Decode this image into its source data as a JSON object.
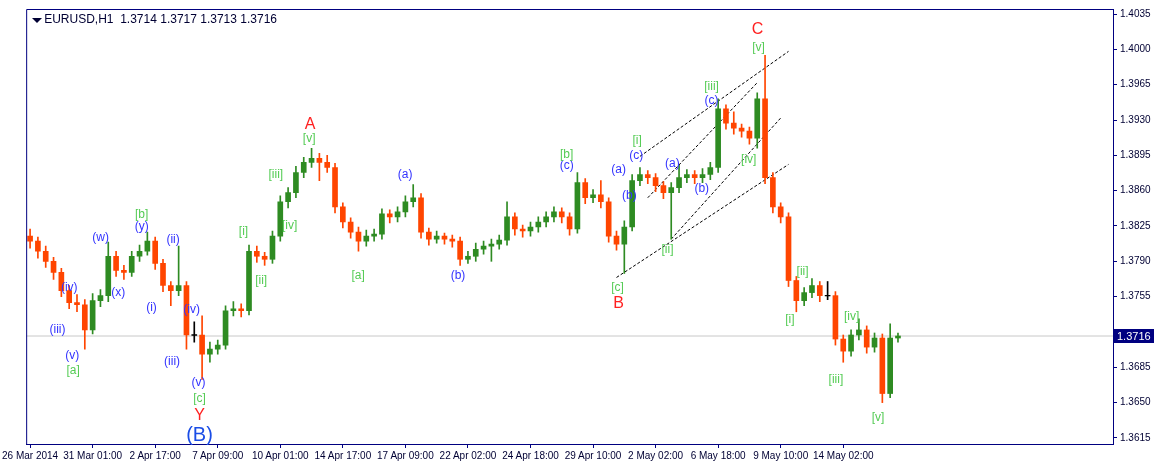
{
  "chart_data": {
    "type": "candlestick",
    "title": "EURUSD,H1  1.3714 1.3717 1.3713 1.3716",
    "categories": [
      "26 Mar 2014",
      null,
      null,
      null,
      null,
      null,
      null,
      null,
      "31 Mar 01:00",
      null,
      null,
      null,
      null,
      null,
      null,
      null,
      "2 Apr 17:00",
      null,
      null,
      null,
      null,
      null,
      null,
      null,
      "7 Apr 09:00",
      null,
      null,
      null,
      null,
      null,
      null,
      null,
      "10 Apr 01:00",
      null,
      null,
      null,
      null,
      null,
      null,
      null,
      "14 Apr 17:00",
      null,
      null,
      null,
      null,
      null,
      null,
      null,
      "17 Apr 09:00",
      null,
      null,
      null,
      null,
      null,
      null,
      null,
      "22 Apr 02:00",
      null,
      null,
      null,
      null,
      null,
      null,
      null,
      "24 Apr 18:00",
      null,
      null,
      null,
      null,
      null,
      null,
      null,
      "29 Apr 10:00",
      null,
      null,
      null,
      null,
      null,
      null,
      null,
      "2 May 02:00",
      null,
      null,
      null,
      null,
      null,
      null,
      null,
      "6 May 18:00",
      null,
      null,
      null,
      null,
      null,
      null,
      null,
      "9 May 10:00",
      null,
      null,
      null,
      null,
      null,
      null,
      null,
      "14 May 02:00",
      null,
      null,
      null,
      null,
      null,
      null,
      null,
      null,
      null,
      null,
      null,
      null,
      null,
      null,
      null,
      null,
      null,
      null,
      null,
      null,
      null,
      null,
      null,
      null,
      null,
      null,
      null,
      null,
      null,
      null,
      null,
      null,
      null,
      null
    ],
    "ohlc": [
      [
        1.3815,
        1.3822,
        1.3803,
        1.381
      ],
      [
        1.381,
        1.3814,
        1.3793,
        1.38
      ],
      [
        1.38,
        1.3805,
        1.3784,
        1.379
      ],
      [
        1.379,
        1.3794,
        1.3772,
        1.3779
      ],
      [
        1.3779,
        1.3783,
        1.3755,
        1.3761
      ],
      [
        1.3761,
        1.3766,
        1.3743,
        1.3749
      ],
      [
        1.3749,
        1.3757,
        1.374,
        1.3747
      ],
      [
        1.3747,
        1.3752,
        1.3703,
        1.3722
      ],
      [
        1.3722,
        1.3758,
        1.3718,
        1.3751
      ],
      [
        1.3751,
        1.3762,
        1.3745,
        1.3756
      ],
      [
        1.3756,
        1.3809,
        1.375,
        1.3795
      ],
      [
        1.3795,
        1.38,
        1.3775,
        1.3781
      ],
      [
        1.3781,
        1.3786,
        1.3772,
        1.3779
      ],
      [
        1.3779,
        1.38,
        1.3775,
        1.3795
      ],
      [
        1.3795,
        1.3806,
        1.379,
        1.38
      ],
      [
        1.38,
        1.3819,
        1.3796,
        1.381
      ],
      [
        1.381,
        1.3814,
        1.3782,
        1.3788
      ],
      [
        1.3788,
        1.3792,
        1.376,
        1.3766
      ],
      [
        1.3766,
        1.377,
        1.3746,
        1.3761
      ],
      [
        1.3761,
        1.3805,
        1.3756,
        1.3766
      ],
      [
        1.3766,
        1.377,
        1.3703,
        1.3717
      ],
      [
        1.3717,
        1.373,
        1.371,
        1.3717
      ],
      [
        1.3717,
        1.3736,
        1.3673,
        1.3698
      ],
      [
        1.3698,
        1.371,
        1.369,
        1.3703
      ],
      [
        1.3703,
        1.3712,
        1.3698,
        1.3707
      ],
      [
        1.3707,
        1.3746,
        1.3703,
        1.3741
      ],
      [
        1.3741,
        1.375,
        1.3736,
        1.3743
      ],
      [
        1.3743,
        1.3748,
        1.3735,
        1.3741
      ],
      [
        1.3741,
        1.3806,
        1.3737,
        1.38
      ],
      [
        1.38,
        1.3805,
        1.3789,
        1.3795
      ],
      [
        1.3795,
        1.3799,
        1.3786,
        1.3792
      ],
      [
        1.3792,
        1.382,
        1.3788,
        1.3815
      ],
      [
        1.3815,
        1.3855,
        1.381,
        1.3849
      ],
      [
        1.3849,
        1.3863,
        1.3843,
        1.3858
      ],
      [
        1.3858,
        1.3884,
        1.3853,
        1.3878
      ],
      [
        1.3878,
        1.3893,
        1.3873,
        1.3888
      ],
      [
        1.3888,
        1.3902,
        1.3883,
        1.3892
      ],
      [
        1.3892,
        1.3897,
        1.387,
        1.3888
      ],
      [
        1.3888,
        1.3895,
        1.3878,
        1.3883
      ],
      [
        1.3883,
        1.3887,
        1.3838,
        1.3844
      ],
      [
        1.3844,
        1.3848,
        1.3823,
        1.3829
      ],
      [
        1.3829,
        1.3833,
        1.3813,
        1.3819
      ],
      [
        1.3819,
        1.3824,
        1.38,
        1.381
      ],
      [
        1.381,
        1.3821,
        1.3805,
        1.3815
      ],
      [
        1.3815,
        1.3822,
        1.381,
        1.3817
      ],
      [
        1.3817,
        1.3842,
        1.3812,
        1.3837
      ],
      [
        1.3837,
        1.3841,
        1.3828,
        1.3834
      ],
      [
        1.3834,
        1.3844,
        1.3829,
        1.3839
      ],
      [
        1.3839,
        1.3855,
        1.3834,
        1.3849
      ],
      [
        1.3849,
        1.3866,
        1.3844,
        1.3853
      ],
      [
        1.3853,
        1.3857,
        1.3813,
        1.3819
      ],
      [
        1.3819,
        1.3823,
        1.3806,
        1.3812
      ],
      [
        1.3812,
        1.382,
        1.3808,
        1.3815
      ],
      [
        1.3815,
        1.3818,
        1.3807,
        1.3812
      ],
      [
        1.3812,
        1.3816,
        1.3804,
        1.381
      ],
      [
        1.381,
        1.3814,
        1.3786,
        1.3792
      ],
      [
        1.3792,
        1.38,
        1.3788,
        1.3795
      ],
      [
        1.3795,
        1.3808,
        1.379,
        1.3802
      ],
      [
        1.3802,
        1.381,
        1.3797,
        1.3805
      ],
      [
        1.3805,
        1.3812,
        1.379,
        1.3807
      ],
      [
        1.3807,
        1.3816,
        1.3802,
        1.3811
      ],
      [
        1.3811,
        1.3849,
        1.3806,
        1.3834
      ],
      [
        1.3834,
        1.3838,
        1.3816,
        1.3822
      ],
      [
        1.3822,
        1.3826,
        1.3814,
        1.382
      ],
      [
        1.382,
        1.3829,
        1.3815,
        1.3824
      ],
      [
        1.3824,
        1.3834,
        1.3819,
        1.3829
      ],
      [
        1.3829,
        1.3839,
        1.3824,
        1.3834
      ],
      [
        1.3834,
        1.3844,
        1.3829,
        1.3839
      ],
      [
        1.3839,
        1.3843,
        1.3828,
        1.3834
      ],
      [
        1.3834,
        1.3838,
        1.3816,
        1.3822
      ],
      [
        1.3822,
        1.3878,
        1.3818,
        1.3868
      ],
      [
        1.3868,
        1.3872,
        1.3847,
        1.3853
      ],
      [
        1.3853,
        1.3861,
        1.3848,
        1.3856
      ],
      [
        1.3856,
        1.387,
        1.3843,
        1.3849
      ],
      [
        1.3849,
        1.3853,
        1.3809,
        1.3815
      ],
      [
        1.3815,
        1.382,
        1.3801,
        1.3807
      ],
      [
        1.3807,
        1.383,
        1.3778,
        1.3824
      ],
      [
        1.3824,
        1.3876,
        1.382,
        1.387
      ],
      [
        1.387,
        1.3883,
        1.3865,
        1.3876
      ],
      [
        1.3876,
        1.388,
        1.3867,
        1.3873
      ],
      [
        1.3873,
        1.3877,
        1.3859,
        1.3865
      ],
      [
        1.3865,
        1.3869,
        1.3852,
        1.3858
      ],
      [
        1.3858,
        1.3868,
        1.3812,
        1.3863
      ],
      [
        1.3863,
        1.3885,
        1.3858,
        1.3873
      ],
      [
        1.3873,
        1.3881,
        1.3868,
        1.3876
      ],
      [
        1.3876,
        1.388,
        1.3867,
        1.3873
      ],
      [
        1.3873,
        1.3882,
        1.3868,
        1.3876
      ],
      [
        1.3876,
        1.3888,
        1.3871,
        1.3883
      ],
      [
        1.3883,
        1.3951,
        1.3878,
        1.3941
      ],
      [
        1.3941,
        1.3945,
        1.3921,
        1.3927
      ],
      [
        1.3927,
        1.3938,
        1.3916,
        1.3922
      ],
      [
        1.3922,
        1.3926,
        1.3913,
        1.3919
      ],
      [
        1.3919,
        1.3923,
        1.3906,
        1.3912
      ],
      [
        1.3912,
        1.3957,
        1.3902,
        1.3951
      ],
      [
        1.3951,
        1.3994,
        1.3867,
        1.3873
      ],
      [
        1.3873,
        1.3878,
        1.3838,
        1.3844
      ],
      [
        1.3844,
        1.3848,
        1.3828,
        1.3834
      ],
      [
        1.3834,
        1.3838,
        1.3765,
        1.3771
      ],
      [
        1.3771,
        1.3775,
        1.374,
        1.3751
      ],
      [
        1.3751,
        1.3764,
        1.3746,
        1.3759
      ],
      [
        1.3759,
        1.3773,
        1.3754,
        1.3766
      ],
      [
        1.3766,
        1.377,
        1.375,
        1.3756
      ],
      [
        1.3756,
        1.377,
        1.3752,
        1.3756
      ],
      [
        1.3756,
        1.376,
        1.3707,
        1.3713
      ],
      [
        1.3713,
        1.3717,
        1.369,
        1.3701
      ],
      [
        1.3701,
        1.3722,
        1.3696,
        1.3717
      ],
      [
        1.3717,
        1.3733,
        1.3712,
        1.3722
      ],
      [
        1.3722,
        1.3726,
        1.3699,
        1.3705
      ],
      [
        1.3705,
        1.3719,
        1.37,
        1.3714
      ],
      [
        1.3714,
        1.3718,
        1.365,
        1.3659
      ],
      [
        1.3659,
        1.3728,
        1.3655,
        1.3714
      ],
      [
        1.3714,
        1.3719,
        1.371,
        1.3716
      ],
      null,
      null,
      null,
      null,
      null,
      null,
      null,
      null,
      null,
      null,
      null,
      null,
      null,
      null,
      null,
      null,
      null,
      null,
      null,
      null,
      null,
      null,
      null,
      null,
      null,
      null,
      null
    ],
    "colors": [
      "#ff4500",
      "#ff4500",
      "#ff4500",
      "#ff4500",
      "#ff4500",
      "#ff4500",
      "#ff4500",
      "#ff4500",
      "#2e8b22",
      "#2e8b22",
      "#2e8b22",
      "#ff4500",
      "#ff4500",
      "#2e8b22",
      "#2e8b22",
      "#2e8b22",
      "#ff4500",
      "#ff4500",
      "#ff4500",
      "#2e8b22",
      "#ff4500",
      "#000000",
      "#ff4500",
      "#2e8b22",
      "#2e8b22",
      "#2e8b22",
      "#2e8b22",
      "#ff4500",
      "#2e8b22",
      "#ff4500",
      "#ff4500",
      "#2e8b22",
      "#2e8b22",
      "#2e8b22",
      "#2e8b22",
      "#2e8b22",
      "#2e8b22",
      "#ff4500",
      "#ff4500",
      "#ff4500",
      "#ff4500",
      "#ff4500",
      "#ff4500",
      "#2e8b22",
      "#2e8b22",
      "#2e8b22",
      "#ff4500",
      "#2e8b22",
      "#2e8b22",
      "#2e8b22",
      "#ff4500",
      "#ff4500",
      "#2e8b22",
      "#ff4500",
      "#ff4500",
      "#ff4500",
      "#2e8b22",
      "#2e8b22",
      "#2e8b22",
      "#2e8b22",
      "#2e8b22",
      "#2e8b22",
      "#ff4500",
      "#ff4500",
      "#2e8b22",
      "#2e8b22",
      "#2e8b22",
      "#2e8b22",
      "#ff4500",
      "#ff4500",
      "#2e8b22",
      "#ff4500",
      "#2e8b22",
      "#ff4500",
      "#ff4500",
      "#ff4500",
      "#2e8b22",
      "#2e8b22",
      "#2e8b22",
      "#ff4500",
      "#ff4500",
      "#ff4500",
      "#2e8b22",
      "#2e8b22",
      "#2e8b22",
      "#ff4500",
      "#2e8b22",
      "#2e8b22",
      "#2e8b22",
      "#ff4500",
      "#ff4500",
      "#ff4500",
      "#ff4500",
      "#2e8b22",
      "#ff4500",
      "#ff4500",
      "#ff4500",
      "#ff4500",
      "#ff4500",
      "#2e8b22",
      "#2e8b22",
      "#ff4500",
      "#000000",
      "#ff4500",
      "#ff4500",
      "#2e8b22",
      "#2e8b22",
      "#ff4500",
      "#2e8b22",
      "#ff4500",
      "#2e8b22",
      "#2e8b22",
      null,
      null,
      null,
      null,
      null,
      null,
      null,
      null,
      null,
      null,
      null,
      null,
      null,
      null,
      null,
      null,
      null,
      null,
      null,
      null,
      null,
      null,
      null,
      null,
      null,
      null,
      null
    ],
    "series": [
      {
        "type": "line",
        "color": "#000000",
        "line_style": "dashed",
        "values": [
          null,
          null,
          null,
          null,
          null,
          null,
          null,
          null,
          null,
          null,
          null,
          null,
          null,
          null,
          null,
          null,
          null,
          null,
          null,
          null,
          null,
          null,
          null,
          null,
          null,
          null,
          null,
          null,
          null,
          null,
          null,
          null,
          null,
          null,
          null,
          null,
          null,
          null,
          null,
          null,
          null,
          null,
          null,
          null,
          null,
          null,
          null,
          null,
          null,
          null,
          null,
          null,
          null,
          null,
          null,
          null,
          null,
          null,
          null,
          null,
          null,
          null,
          null,
          null,
          null,
          null,
          null,
          null,
          null,
          null,
          null,
          null,
          null,
          null,
          null,
          1.3774,
          null,
          null,
          null,
          null,
          null,
          null,
          null,
          null,
          null,
          null,
          null,
          null,
          null,
          null,
          null,
          null,
          null,
          null,
          null,
          null,
          null,
          1.3886,
          null,
          null,
          null,
          null,
          null,
          null,
          null,
          null,
          null,
          null,
          null,
          null,
          null,
          null,
          null,
          null,
          null,
          null,
          null,
          null,
          null,
          null,
          null,
          null,
          null,
          null,
          null,
          null,
          null,
          null,
          null,
          null,
          null,
          null,
          null,
          null,
          null,
          null,
          null,
          null,
          null
        ]
      },
      {
        "type": "line",
        "color": "#000000",
        "line_style": "dashed",
        "values": [
          null,
          null,
          null,
          null,
          null,
          null,
          null,
          null,
          null,
          null,
          null,
          null,
          null,
          null,
          null,
          null,
          null,
          null,
          null,
          null,
          null,
          null,
          null,
          null,
          null,
          null,
          null,
          null,
          null,
          null,
          null,
          null,
          null,
          null,
          null,
          null,
          null,
          null,
          null,
          null,
          null,
          null,
          null,
          null,
          null,
          null,
          null,
          null,
          null,
          null,
          null,
          null,
          null,
          null,
          null,
          null,
          null,
          null,
          null,
          null,
          null,
          null,
          null,
          null,
          null,
          null,
          null,
          null,
          null,
          null,
          null,
          null,
          null,
          null,
          null,
          null,
          null,
          null,
          1.3894,
          null,
          null,
          null,
          null,
          null,
          null,
          null,
          null,
          null,
          null,
          null,
          null,
          null,
          null,
          null,
          null,
          null,
          null,
          1.3998,
          null,
          null,
          null,
          null,
          null,
          null,
          null,
          null,
          null,
          null,
          null,
          null,
          null,
          null,
          null,
          null,
          null,
          null,
          null,
          null,
          null,
          null,
          null,
          null,
          null,
          null,
          null,
          null,
          null,
          null,
          null,
          null,
          null,
          null,
          null,
          null,
          null,
          null,
          null,
          null,
          null
        ]
      },
      {
        "type": "line",
        "color": "#000000",
        "line_style": "dashed",
        "values": [
          null,
          null,
          null,
          null,
          null,
          null,
          null,
          null,
          null,
          null,
          null,
          null,
          null,
          null,
          null,
          null,
          null,
          null,
          null,
          null,
          null,
          null,
          null,
          null,
          null,
          null,
          null,
          null,
          null,
          null,
          null,
          null,
          null,
          null,
          null,
          null,
          null,
          null,
          null,
          null,
          null,
          null,
          null,
          null,
          null,
          null,
          null,
          null,
          null,
          null,
          null,
          null,
          null,
          null,
          null,
          null,
          null,
          null,
          null,
          null,
          null,
          null,
          null,
          null,
          null,
          null,
          null,
          null,
          null,
          null,
          null,
          null,
          null,
          null,
          null,
          null,
          null,
          null,
          null,
          1.3853,
          null,
          null,
          null,
          null,
          null,
          null,
          null,
          null,
          null,
          null,
          null,
          null,
          null,
          1.3967,
          null,
          null,
          null,
          null,
          null,
          null,
          null,
          null,
          null,
          null,
          null,
          null,
          null,
          null,
          null,
          null,
          null,
          null,
          null,
          null,
          null,
          null,
          null,
          null,
          null,
          null,
          null,
          null,
          null,
          null,
          null,
          null,
          null,
          null,
          null,
          null,
          null,
          null,
          null,
          null,
          null,
          null,
          null,
          null,
          null
        ]
      },
      {
        "type": "line",
        "color": "#000000",
        "line_style": "dashed",
        "values": [
          null,
          null,
          null,
          null,
          null,
          null,
          null,
          null,
          null,
          null,
          null,
          null,
          null,
          null,
          null,
          null,
          null,
          null,
          null,
          null,
          null,
          null,
          null,
          null,
          null,
          null,
          null,
          null,
          null,
          null,
          null,
          null,
          null,
          null,
          null,
          null,
          null,
          null,
          null,
          null,
          null,
          null,
          null,
          null,
          null,
          null,
          null,
          null,
          null,
          null,
          null,
          null,
          null,
          null,
          null,
          null,
          null,
          null,
          null,
          null,
          null,
          null,
          null,
          null,
          null,
          null,
          null,
          null,
          null,
          null,
          null,
          null,
          null,
          null,
          null,
          null,
          null,
          null,
          null,
          null,
          null,
          null,
          1.3812,
          null,
          null,
          null,
          null,
          null,
          null,
          null,
          null,
          null,
          null,
          null,
          null,
          null,
          1.3932,
          null,
          null,
          null,
          null,
          null,
          null,
          null,
          null,
          null,
          null,
          null,
          null,
          null,
          null,
          null,
          null,
          null,
          null,
          null,
          null,
          null,
          null,
          null,
          null,
          null,
          null,
          null,
          null,
          null,
          null,
          null,
          null,
          null,
          null,
          null,
          null,
          null,
          null,
          null,
          null,
          null,
          null
        ]
      }
    ],
    "ylim": [
      1.3609,
      1.404
    ],
    "yticks": [
      {
        "value": 1.3615,
        "label": "1.3615"
      },
      {
        "value": 1.365,
        "label": "1.3650"
      },
      {
        "value": 1.3685,
        "label": "1.3685"
      },
      {
        "value": 1.3755,
        "label": "1.3755"
      },
      {
        "value": 1.379,
        "label": "1.3790"
      },
      {
        "value": 1.3825,
        "label": "1.3825"
      },
      {
        "value": 1.386,
        "label": "1.3860"
      },
      {
        "value": 1.3895,
        "label": "1.3895"
      },
      {
        "value": 1.393,
        "label": "1.3930"
      },
      {
        "value": 1.3965,
        "label": "1.3965"
      },
      {
        "value": 1.4,
        "label": "1.4000"
      },
      {
        "value": 1.4035,
        "label": "1.4035"
      }
    ],
    "ref_lines": [
      {
        "axis": "y",
        "value": 1.3716,
        "label": "1.3716",
        "color": "#c8c8c8"
      }
    ],
    "annotations": [
      "(iii)",
      "(iv)",
      "(v)",
      "[a]",
      "(w)",
      "(x)",
      "(y)",
      "[b]",
      "(i)",
      "(ii)",
      "(iii)",
      "(iv)",
      "(v)",
      "[c]",
      "Y",
      "(B)",
      "[i]",
      "[ii]",
      "[iii]",
      "[iv]",
      "[v]",
      "A",
      "[a]",
      "(a)",
      "(b)",
      "(c)",
      "[b]",
      "[c]",
      "B",
      "(a)",
      "(b)",
      "(c)",
      "[i]",
      "(a)",
      "[ii]",
      "(b)",
      "(c)",
      "[iii]",
      "[iv]",
      "[v]",
      "C",
      "[i]",
      "[ii]",
      "[iii]",
      "[iv]",
      "[v]"
    ]
  }
}
